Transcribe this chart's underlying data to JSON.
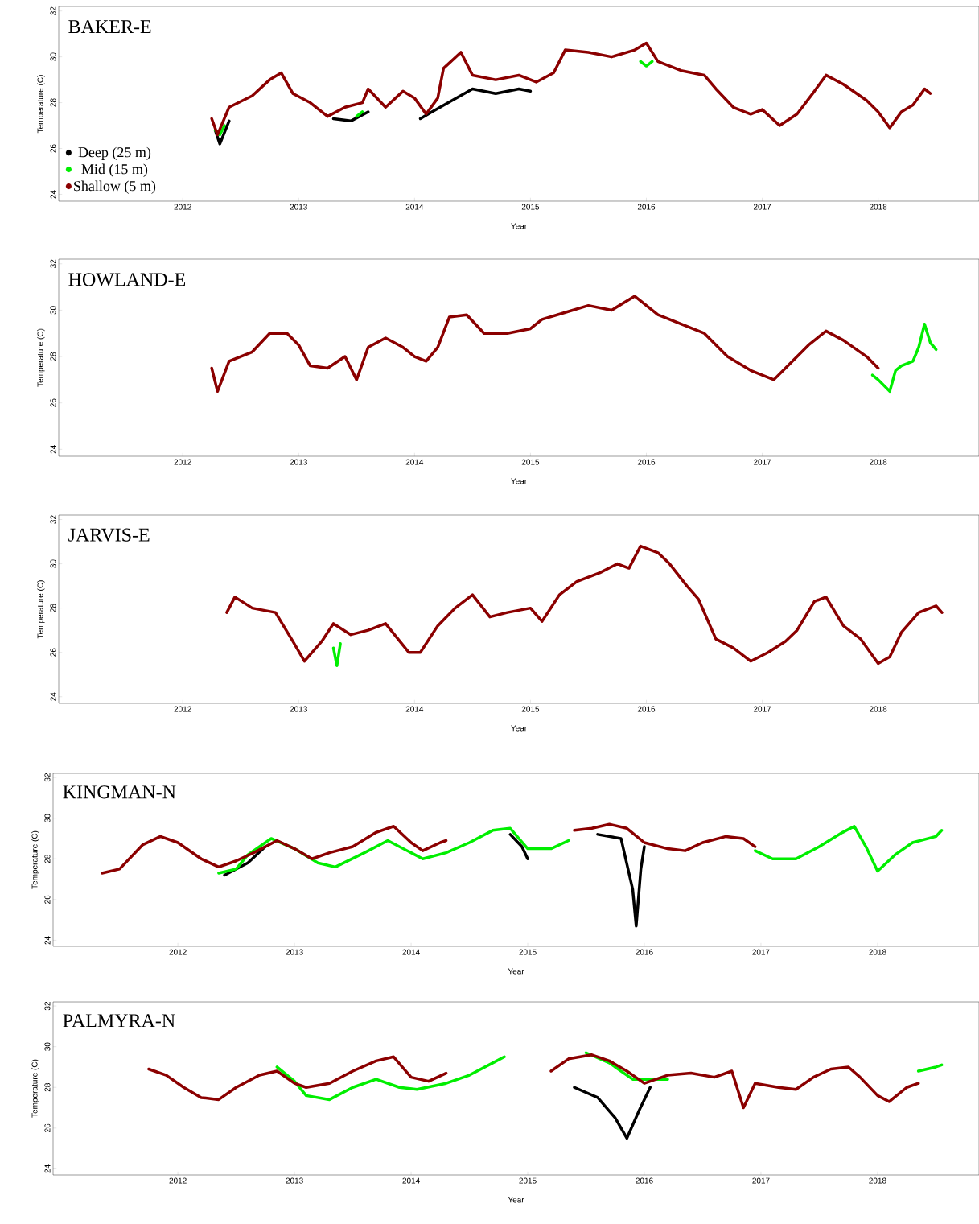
{
  "chart_data": [
    {
      "type": "line",
      "title": "BAKER-E",
      "xlabel": "Year",
      "ylabel": "Temperature (C)",
      "xlim": [
        2010.93,
        2018.87
      ],
      "ylim": [
        23.7,
        32.2
      ],
      "xticks": [
        2012,
        2013,
        2014,
        2015,
        2016,
        2017,
        2018
      ],
      "yticks": [
        24,
        26,
        28,
        30,
        32
      ],
      "legend": "bottom left",
      "line_style": "solid",
      "series": [
        {
          "name": "Deep (25 m)",
          "color": "#000000",
          "x": [
            2012.28,
            2012.32,
            2012.4,
            null,
            2013.3,
            2013.45,
            2013.6,
            null,
            2014.05,
            2014.15,
            2014.5,
            2014.7,
            2014.9,
            2015.0
          ],
          "values": [
            26.8,
            26.2,
            27.2,
            null,
            27.3,
            27.2,
            27.6,
            null,
            27.3,
            27.6,
            28.6,
            28.4,
            28.6,
            28.5
          ]
        },
        {
          "name": "Mid (15 m)",
          "color": "#00ee00",
          "x": [
            2012.28,
            2012.32,
            2012.36,
            null,
            2013.5,
            2013.55,
            null,
            2015.95,
            2016.0,
            2016.05
          ],
          "values": [
            26.8,
            26.6,
            27.0,
            null,
            27.4,
            27.6,
            null,
            29.8,
            29.6,
            29.8
          ]
        },
        {
          "name": "Shallow (5 m)",
          "color": "#8b0000",
          "x": [
            2012.25,
            2012.3,
            2012.4,
            2012.6,
            2012.75,
            2012.85,
            2012.95,
            2013.1,
            2013.25,
            2013.4,
            2013.55,
            2013.6,
            2013.75,
            2013.9,
            2014.0,
            2014.1,
            2014.2,
            2014.25,
            2014.4,
            2014.5,
            2014.7,
            2014.9,
            2015.05,
            2015.2,
            2015.3,
            2015.5,
            2015.7,
            2015.9,
            2016.0,
            2016.1,
            2016.3,
            2016.5,
            2016.6,
            2016.75,
            2016.9,
            2017.0,
            2017.15,
            2017.3,
            2017.45,
            2017.55,
            2017.7,
            2017.9,
            2018.0,
            2018.1,
            2018.2,
            2018.3,
            2018.4,
            2018.45
          ],
          "values": [
            27.3,
            26.6,
            27.8,
            28.3,
            29.0,
            29.3,
            28.4,
            28.0,
            27.4,
            27.8,
            28.0,
            28.6,
            27.8,
            28.5,
            28.2,
            27.5,
            28.2,
            29.5,
            30.2,
            29.2,
            29.0,
            29.2,
            28.9,
            29.3,
            30.3,
            30.2,
            30.0,
            30.3,
            30.6,
            29.8,
            29.4,
            29.2,
            28.6,
            27.8,
            27.5,
            27.7,
            27.0,
            27.5,
            28.5,
            29.2,
            28.8,
            28.1,
            27.6,
            26.9,
            27.6,
            27.9,
            28.6,
            28.4
          ]
        }
      ]
    },
    {
      "type": "line",
      "title": "HOWLAND-E",
      "xlabel": "Year",
      "ylabel": "Temperature (C)",
      "xlim": [
        2010.93,
        2018.87
      ],
      "ylim": [
        23.7,
        32.2
      ],
      "xticks": [
        2012,
        2013,
        2014,
        2015,
        2016,
        2017,
        2018
      ],
      "yticks": [
        24,
        26,
        28,
        30,
        32
      ],
      "legend": false,
      "line_style": "solid",
      "series": [
        {
          "color": "#00ee00",
          "x": [
            2017.95,
            2018.0,
            2018.1,
            2018.15,
            2018.2,
            2018.3,
            2018.35,
            2018.4,
            2018.45,
            2018.5
          ],
          "values": [
            27.2,
            27.0,
            26.5,
            27.4,
            27.6,
            27.8,
            28.4,
            29.4,
            28.6,
            28.3
          ]
        },
        {
          "color": "#8b0000",
          "x": [
            2012.25,
            2012.3,
            2012.4,
            2012.6,
            2012.75,
            2012.9,
            2013.0,
            2013.1,
            2013.25,
            2013.4,
            2013.5,
            2013.6,
            2013.75,
            2013.9,
            2014.0,
            2014.1,
            2014.2,
            2014.3,
            2014.45,
            2014.6,
            2014.8,
            2015.0,
            2015.1,
            2015.3,
            2015.5,
            2015.7,
            2015.9,
            2016.0,
            2016.1,
            2016.3,
            2016.5,
            2016.7,
            2016.9,
            2017.1,
            2017.2,
            2017.4,
            2017.55,
            2017.7,
            2017.9,
            2018.0
          ],
          "values": [
            27.5,
            26.5,
            27.8,
            28.2,
            29.0,
            29.0,
            28.5,
            27.6,
            27.5,
            28.0,
            27.0,
            28.4,
            28.8,
            28.4,
            28.0,
            27.8,
            28.4,
            29.7,
            29.8,
            29.0,
            29.0,
            29.2,
            29.6,
            29.9,
            30.2,
            30.0,
            30.6,
            30.2,
            29.8,
            29.4,
            29.0,
            28.0,
            27.4,
            27.0,
            27.5,
            28.5,
            29.1,
            28.7,
            28.0,
            27.5
          ]
        }
      ]
    },
    {
      "type": "line",
      "title": "JARVIS-E",
      "xlabel": "Year",
      "ylabel": "Temperature (C)",
      "xlim": [
        2010.93,
        2018.87
      ],
      "ylim": [
        23.7,
        32.2
      ],
      "xticks": [
        2012,
        2013,
        2014,
        2015,
        2016,
        2017,
        2018
      ],
      "yticks": [
        24,
        26,
        28,
        30,
        32
      ],
      "legend": false,
      "line_style": "solid",
      "series": [
        {
          "color": "#00ee00",
          "x": [
            2013.3,
            2013.33,
            2013.36
          ],
          "values": [
            26.2,
            25.4,
            26.4
          ]
        },
        {
          "color": "#8b0000",
          "x": [
            2012.38,
            2012.45,
            2012.6,
            2012.8,
            2012.95,
            2013.05,
            2013.2,
            2013.3,
            2013.45,
            2013.6,
            2013.75,
            2013.95,
            2014.05,
            2014.2,
            2014.35,
            2014.5,
            2014.65,
            2014.8,
            2015.0,
            2015.1,
            2015.25,
            2015.4,
            2015.6,
            2015.75,
            2015.85,
            2015.95,
            2016.1,
            2016.2,
            2016.35,
            2016.45,
            2016.6,
            2016.75,
            2016.9,
            2017.05,
            2017.2,
            2017.3,
            2017.45,
            2017.55,
            2017.7,
            2017.85,
            2018.0,
            2018.1,
            2018.2,
            2018.35,
            2018.5,
            2018.55
          ],
          "values": [
            27.8,
            28.5,
            28.0,
            27.8,
            26.5,
            25.6,
            26.5,
            27.3,
            26.8,
            27.0,
            27.3,
            26.0,
            26.0,
            27.2,
            28.0,
            28.6,
            27.6,
            27.8,
            28.0,
            27.4,
            28.6,
            29.2,
            29.6,
            30.0,
            29.8,
            30.8,
            30.5,
            30.0,
            29.0,
            28.4,
            26.6,
            26.2,
            25.6,
            26.0,
            26.5,
            27.0,
            28.3,
            28.5,
            27.2,
            26.6,
            25.5,
            25.8,
            26.9,
            27.8,
            28.1,
            27.8
          ]
        }
      ]
    },
    {
      "type": "line",
      "title": "KINGMAN-N",
      "xlabel": "Year",
      "ylabel": "Temperature (C)",
      "xlim": [
        2010.93,
        2018.87
      ],
      "ylim": [
        23.7,
        32.2
      ],
      "xticks": [
        2012,
        2013,
        2014,
        2015,
        2016,
        2017,
        2018
      ],
      "yticks": [
        24,
        26,
        28,
        30,
        32
      ],
      "legend": false,
      "line_style": "solid",
      "series": [
        {
          "color": "#000000",
          "x": [
            2012.4,
            2012.6,
            2012.75,
            null,
            2014.85,
            2014.95,
            2015.0,
            null,
            2015.6,
            2015.8,
            2015.9,
            2015.93,
            2015.97,
            2016.0
          ],
          "values": [
            27.2,
            27.8,
            28.6,
            null,
            29.2,
            28.6,
            28.0,
            null,
            29.2,
            29.0,
            26.5,
            24.7,
            27.5,
            28.6
          ]
        },
        {
          "color": "#00ee00",
          "x": [
            2012.35,
            2012.5,
            2012.6,
            2012.8,
            2013.0,
            2013.2,
            2013.35,
            2013.6,
            2013.8,
            2014.0,
            2014.1,
            2014.3,
            2014.5,
            2014.7,
            2014.85,
            2015.0,
            2015.2,
            2015.35,
            null,
            2016.95,
            2017.1,
            2017.3,
            2017.5,
            2017.7,
            2017.8,
            2017.9,
            2018.0,
            2018.15,
            2018.3,
            2018.5,
            2018.55
          ],
          "values": [
            27.3,
            27.5,
            28.2,
            29.0,
            28.5,
            27.8,
            27.6,
            28.3,
            28.9,
            28.3,
            28.0,
            28.3,
            28.8,
            29.4,
            29.5,
            28.5,
            28.5,
            28.9,
            null,
            28.4,
            28.0,
            28.0,
            28.6,
            29.3,
            29.6,
            28.6,
            27.4,
            28.2,
            28.8,
            29.1,
            29.4
          ]
        },
        {
          "color": "#8b0000",
          "x": [
            2011.35,
            2011.5,
            2011.7,
            2011.85,
            2012.0,
            2012.2,
            2012.35,
            2012.5,
            2012.65,
            2012.85,
            2013.0,
            2013.15,
            2013.3,
            2013.5,
            2013.7,
            2013.85,
            2014.0,
            2014.1,
            2014.25,
            2014.3,
            null,
            2015.4,
            2015.55,
            2015.7,
            2015.85,
            2016.0,
            2016.2,
            2016.35,
            2016.5,
            2016.7,
            2016.85,
            2016.95
          ],
          "values": [
            27.3,
            27.5,
            28.7,
            29.1,
            28.8,
            28.0,
            27.6,
            27.9,
            28.3,
            28.9,
            28.5,
            28.0,
            28.3,
            28.6,
            29.3,
            29.6,
            28.8,
            28.4,
            28.8,
            28.9,
            null,
            29.4,
            29.5,
            29.7,
            29.5,
            28.8,
            28.5,
            28.4,
            28.8,
            29.1,
            29.0,
            28.6
          ]
        }
      ]
    },
    {
      "type": "line",
      "title": "PALMYRA-N",
      "xlabel": "Year",
      "ylabel": "Temperature (C)",
      "xlim": [
        2010.93,
        2018.87
      ],
      "ylim": [
        23.7,
        32.2
      ],
      "xticks": [
        2012,
        2013,
        2014,
        2015,
        2016,
        2017,
        2018
      ],
      "yticks": [
        24,
        26,
        28,
        30,
        32
      ],
      "legend": false,
      "line_style": "solid",
      "series": [
        {
          "color": "#000000",
          "x": [
            2015.4,
            2015.6,
            2015.75,
            2015.85,
            2015.95,
            2016.05
          ],
          "values": [
            28.0,
            27.5,
            26.5,
            25.5,
            26.8,
            28.0
          ]
        },
        {
          "color": "#00ee00",
          "x": [
            2012.85,
            2013.0,
            2013.1,
            2013.3,
            2013.5,
            2013.7,
            2013.9,
            2014.05,
            2014.3,
            2014.5,
            2014.7,
            2014.8,
            null,
            2015.5,
            2015.7,
            2015.9,
            2016.2,
            null,
            2018.35,
            2018.5,
            2018.55
          ],
          "values": [
            29.0,
            28.3,
            27.6,
            27.4,
            28.0,
            28.4,
            28.0,
            27.9,
            28.2,
            28.6,
            29.2,
            29.5,
            null,
            29.7,
            29.2,
            28.4,
            28.4,
            null,
            28.8,
            29.0,
            29.1
          ]
        },
        {
          "color": "#8b0000",
          "x": [
            2011.75,
            2011.9,
            2012.05,
            2012.2,
            2012.35,
            2012.5,
            2012.7,
            2012.85,
            2013.0,
            2013.1,
            2013.3,
            2013.5,
            2013.7,
            2013.85,
            2014.0,
            2014.15,
            2014.3,
            null,
            2015.2,
            2015.35,
            2015.55,
            2015.7,
            2015.85,
            2016.0,
            2016.2,
            2016.4,
            2016.6,
            2016.75,
            2016.85,
            2016.95,
            2017.15,
            2017.3,
            2017.45,
            2017.6,
            2017.75,
            2017.85,
            2018.0,
            2018.1,
            2018.25,
            2018.35
          ],
          "values": [
            28.9,
            28.6,
            28.0,
            27.5,
            27.4,
            28.0,
            28.6,
            28.8,
            28.2,
            28.0,
            28.2,
            28.8,
            29.3,
            29.5,
            28.5,
            28.3,
            28.7,
            null,
            28.8,
            29.4,
            29.6,
            29.3,
            28.8,
            28.2,
            28.6,
            28.7,
            28.5,
            28.8,
            27.0,
            28.2,
            28.0,
            27.9,
            28.5,
            28.9,
            29.0,
            28.5,
            27.6,
            27.3,
            28.0,
            28.2
          ]
        }
      ]
    }
  ]
}
